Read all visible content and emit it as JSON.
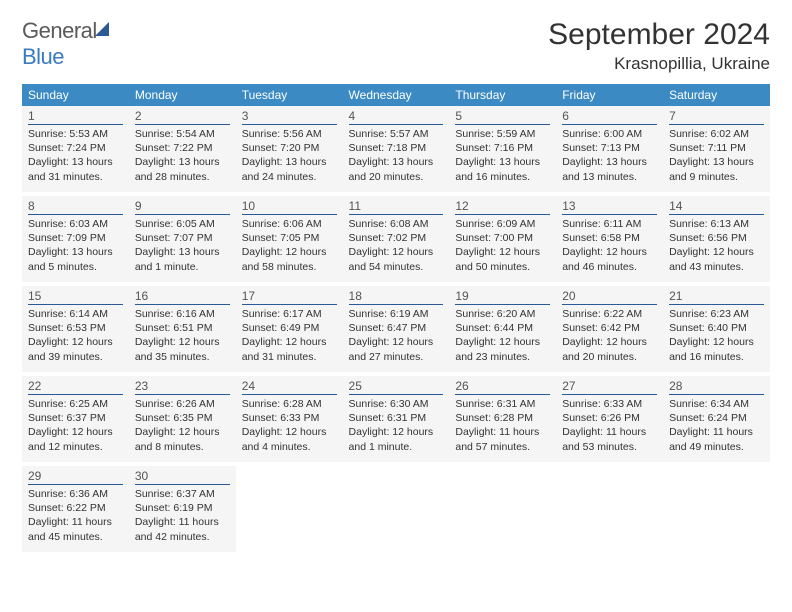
{
  "brand": {
    "part1": "General",
    "part2": "Blue"
  },
  "title": "September 2024",
  "location": "Krasnopillia, Ukraine",
  "colors": {
    "header_bg": "#3b8ac4",
    "header_text": "#ffffff",
    "day_border": "#2a5a95",
    "cell_bg": "#f5f5f5",
    "text": "#333333"
  },
  "weekdays": [
    "Sunday",
    "Monday",
    "Tuesday",
    "Wednesday",
    "Thursday",
    "Friday",
    "Saturday"
  ],
  "layout": {
    "start_weekday": 0,
    "days_in_month": 30
  },
  "days": {
    "1": {
      "sunrise": "5:53 AM",
      "sunset": "7:24 PM",
      "daylight": "13 hours and 31 minutes."
    },
    "2": {
      "sunrise": "5:54 AM",
      "sunset": "7:22 PM",
      "daylight": "13 hours and 28 minutes."
    },
    "3": {
      "sunrise": "5:56 AM",
      "sunset": "7:20 PM",
      "daylight": "13 hours and 24 minutes."
    },
    "4": {
      "sunrise": "5:57 AM",
      "sunset": "7:18 PM",
      "daylight": "13 hours and 20 minutes."
    },
    "5": {
      "sunrise": "5:59 AM",
      "sunset": "7:16 PM",
      "daylight": "13 hours and 16 minutes."
    },
    "6": {
      "sunrise": "6:00 AM",
      "sunset": "7:13 PM",
      "daylight": "13 hours and 13 minutes."
    },
    "7": {
      "sunrise": "6:02 AM",
      "sunset": "7:11 PM",
      "daylight": "13 hours and 9 minutes."
    },
    "8": {
      "sunrise": "6:03 AM",
      "sunset": "7:09 PM",
      "daylight": "13 hours and 5 minutes."
    },
    "9": {
      "sunrise": "6:05 AM",
      "sunset": "7:07 PM",
      "daylight": "13 hours and 1 minute."
    },
    "10": {
      "sunrise": "6:06 AM",
      "sunset": "7:05 PM",
      "daylight": "12 hours and 58 minutes."
    },
    "11": {
      "sunrise": "6:08 AM",
      "sunset": "7:02 PM",
      "daylight": "12 hours and 54 minutes."
    },
    "12": {
      "sunrise": "6:09 AM",
      "sunset": "7:00 PM",
      "daylight": "12 hours and 50 minutes."
    },
    "13": {
      "sunrise": "6:11 AM",
      "sunset": "6:58 PM",
      "daylight": "12 hours and 46 minutes."
    },
    "14": {
      "sunrise": "6:13 AM",
      "sunset": "6:56 PM",
      "daylight": "12 hours and 43 minutes."
    },
    "15": {
      "sunrise": "6:14 AM",
      "sunset": "6:53 PM",
      "daylight": "12 hours and 39 minutes."
    },
    "16": {
      "sunrise": "6:16 AM",
      "sunset": "6:51 PM",
      "daylight": "12 hours and 35 minutes."
    },
    "17": {
      "sunrise": "6:17 AM",
      "sunset": "6:49 PM",
      "daylight": "12 hours and 31 minutes."
    },
    "18": {
      "sunrise": "6:19 AM",
      "sunset": "6:47 PM",
      "daylight": "12 hours and 27 minutes."
    },
    "19": {
      "sunrise": "6:20 AM",
      "sunset": "6:44 PM",
      "daylight": "12 hours and 23 minutes."
    },
    "20": {
      "sunrise": "6:22 AM",
      "sunset": "6:42 PM",
      "daylight": "12 hours and 20 minutes."
    },
    "21": {
      "sunrise": "6:23 AM",
      "sunset": "6:40 PM",
      "daylight": "12 hours and 16 minutes."
    },
    "22": {
      "sunrise": "6:25 AM",
      "sunset": "6:37 PM",
      "daylight": "12 hours and 12 minutes."
    },
    "23": {
      "sunrise": "6:26 AM",
      "sunset": "6:35 PM",
      "daylight": "12 hours and 8 minutes."
    },
    "24": {
      "sunrise": "6:28 AM",
      "sunset": "6:33 PM",
      "daylight": "12 hours and 4 minutes."
    },
    "25": {
      "sunrise": "6:30 AM",
      "sunset": "6:31 PM",
      "daylight": "12 hours and 1 minute."
    },
    "26": {
      "sunrise": "6:31 AM",
      "sunset": "6:28 PM",
      "daylight": "11 hours and 57 minutes."
    },
    "27": {
      "sunrise": "6:33 AM",
      "sunset": "6:26 PM",
      "daylight": "11 hours and 53 minutes."
    },
    "28": {
      "sunrise": "6:34 AM",
      "sunset": "6:24 PM",
      "daylight": "11 hours and 49 minutes."
    },
    "29": {
      "sunrise": "6:36 AM",
      "sunset": "6:22 PM",
      "daylight": "11 hours and 45 minutes."
    },
    "30": {
      "sunrise": "6:37 AM",
      "sunset": "6:19 PM",
      "daylight": "11 hours and 42 minutes."
    }
  },
  "labels": {
    "sunrise": "Sunrise:",
    "sunset": "Sunset:",
    "daylight": "Daylight:"
  }
}
